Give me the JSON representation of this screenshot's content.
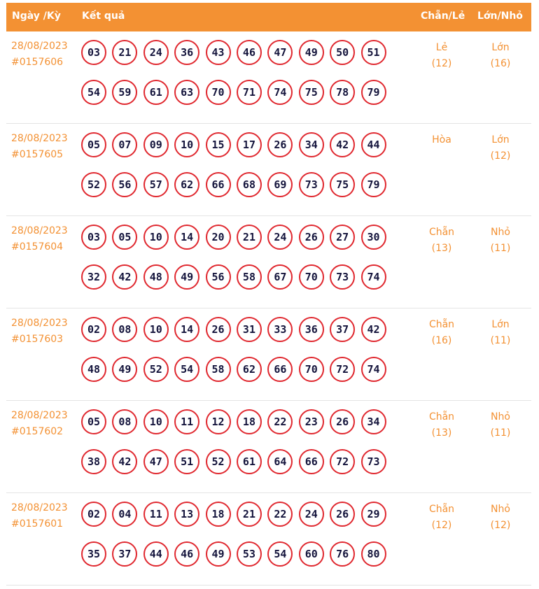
{
  "headers": {
    "date": "Ngày /Kỳ",
    "result": "Kết quả",
    "even_odd": "Chẵn/Lẻ",
    "big_small": "Lớn/Nhỏ"
  },
  "colors": {
    "header_bg": "#f39133",
    "accent_text": "#f39133",
    "ball_border": "#e0282f",
    "ball_text": "#14143c"
  },
  "draws": [
    {
      "date": "28/08/2023",
      "draw": "#0157606",
      "numbers": [
        "03",
        "21",
        "24",
        "36",
        "43",
        "46",
        "47",
        "49",
        "50",
        "51",
        "54",
        "59",
        "61",
        "63",
        "70",
        "71",
        "74",
        "75",
        "78",
        "79"
      ],
      "even_odd": "Lẻ",
      "even_odd_count": "(12)",
      "big_small": "Lớn",
      "big_small_count": "(16)"
    },
    {
      "date": "28/08/2023",
      "draw": "#0157605",
      "numbers": [
        "05",
        "07",
        "09",
        "10",
        "15",
        "17",
        "26",
        "34",
        "42",
        "44",
        "52",
        "56",
        "57",
        "62",
        "66",
        "68",
        "69",
        "73",
        "75",
        "79"
      ],
      "even_odd": "Hòa",
      "even_odd_count": "",
      "big_small": "Lớn",
      "big_small_count": "(12)"
    },
    {
      "date": "28/08/2023",
      "draw": "#0157604",
      "numbers": [
        "03",
        "05",
        "10",
        "14",
        "20",
        "21",
        "24",
        "26",
        "27",
        "30",
        "32",
        "42",
        "48",
        "49",
        "56",
        "58",
        "67",
        "70",
        "73",
        "74"
      ],
      "even_odd": "Chẵn",
      "even_odd_count": "(13)",
      "big_small": "Nhỏ",
      "big_small_count": "(11)"
    },
    {
      "date": "28/08/2023",
      "draw": "#0157603",
      "numbers": [
        "02",
        "08",
        "10",
        "14",
        "26",
        "31",
        "33",
        "36",
        "37",
        "42",
        "48",
        "49",
        "52",
        "54",
        "58",
        "62",
        "66",
        "70",
        "72",
        "74"
      ],
      "even_odd": "Chẵn",
      "even_odd_count": "(16)",
      "big_small": "Lớn",
      "big_small_count": "(11)"
    },
    {
      "date": "28/08/2023",
      "draw": "#0157602",
      "numbers": [
        "05",
        "08",
        "10",
        "11",
        "12",
        "18",
        "22",
        "23",
        "26",
        "34",
        "38",
        "42",
        "47",
        "51",
        "52",
        "61",
        "64",
        "66",
        "72",
        "73"
      ],
      "even_odd": "Chẵn",
      "even_odd_count": "(13)",
      "big_small": "Nhỏ",
      "big_small_count": "(11)"
    },
    {
      "date": "28/08/2023",
      "draw": "#0157601",
      "numbers": [
        "02",
        "04",
        "11",
        "13",
        "18",
        "21",
        "22",
        "24",
        "26",
        "29",
        "35",
        "37",
        "44",
        "46",
        "49",
        "53",
        "54",
        "60",
        "76",
        "80"
      ],
      "even_odd": "Chẵn",
      "even_odd_count": "(12)",
      "big_small": "Nhỏ",
      "big_small_count": "(12)"
    }
  ]
}
